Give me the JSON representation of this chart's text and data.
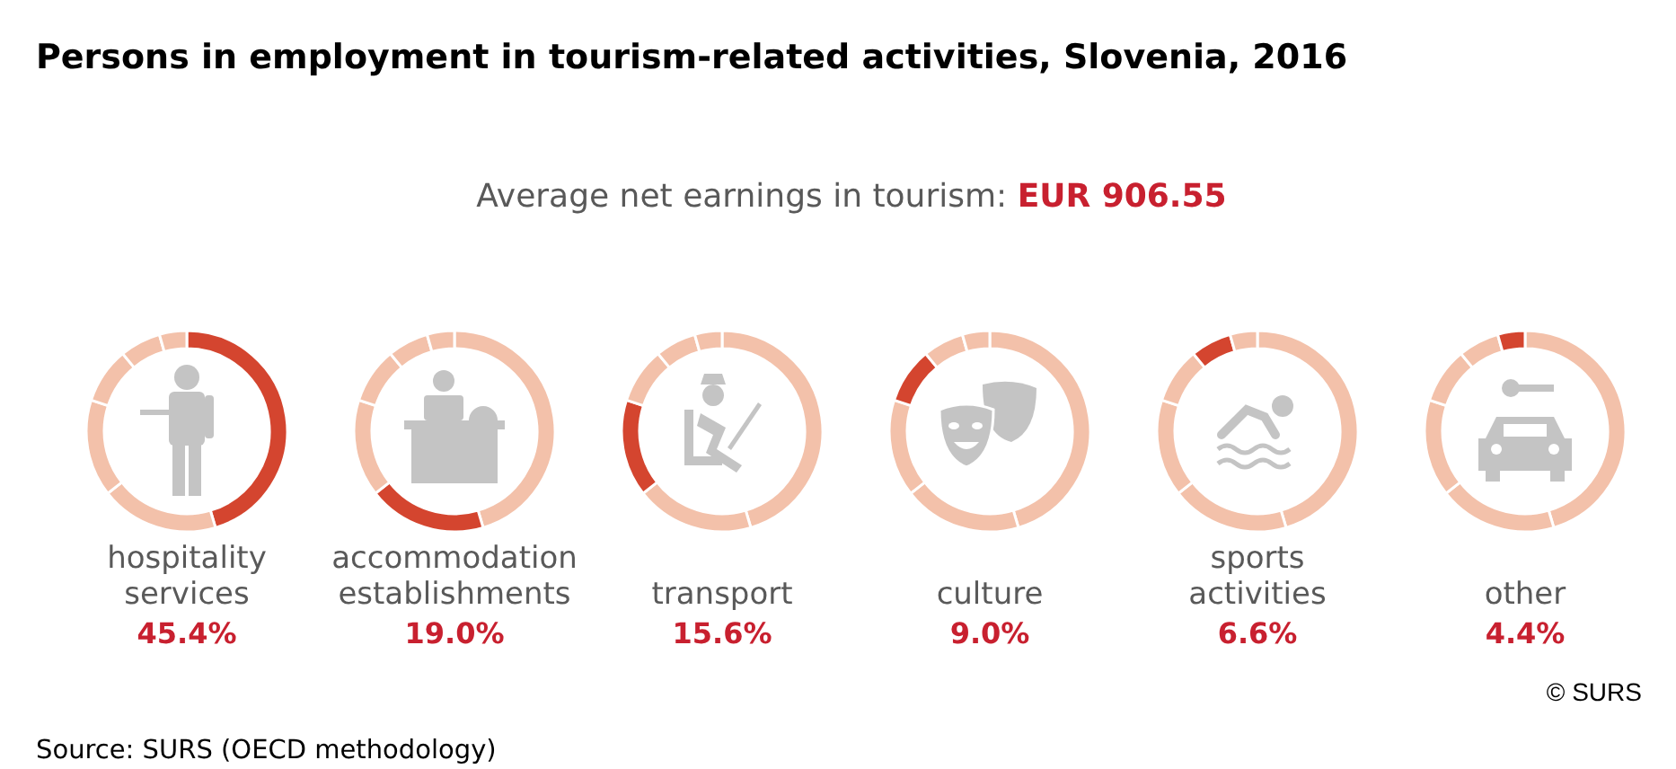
{
  "chart_data": [
    {
      "type": "other",
      "title": "Persons in employment in tourism-related activities, Slovenia, 2016",
      "subtitle": "Average net earnings in tourism: EUR 906.55",
      "annotations": [
        "© SURS",
        "Source: SURS (OECD methodology)"
      ]
    },
    {
      "type": "donut",
      "title": "hospitality services",
      "subtitle": "45.4%",
      "categories": [
        null,
        null,
        null,
        null,
        null,
        null
      ],
      "values": [
        45.4,
        19.0,
        15.6,
        9.0,
        6.6,
        4.4
      ],
      "colors": [
        "#d4452f",
        "#f3c1aa",
        "#f3c1aa",
        "#f3c1aa",
        "#f3c1aa",
        "#f3c1aa"
      ]
    },
    {
      "type": "donut",
      "title": "accommodation establishments",
      "subtitle": "19.0%",
      "categories": [
        null,
        null,
        null,
        null,
        null,
        null
      ],
      "values": [
        45.4,
        19.0,
        15.6,
        9.0,
        6.6,
        4.4
      ],
      "colors": [
        "#f3c1aa",
        "#d4452f",
        "#f3c1aa",
        "#f3c1aa",
        "#f3c1aa",
        "#f3c1aa"
      ]
    },
    {
      "type": "donut",
      "title": "transport",
      "subtitle": "15.6%",
      "categories": [
        null,
        null,
        null,
        null,
        null,
        null
      ],
      "values": [
        45.4,
        19.0,
        15.6,
        9.0,
        6.6,
        4.4
      ],
      "colors": [
        "#f3c1aa",
        "#f3c1aa",
        "#d4452f",
        "#f3c1aa",
        "#f3c1aa",
        "#f3c1aa"
      ]
    },
    {
      "type": "donut",
      "title": "culture",
      "subtitle": "9.0%",
      "categories": [
        null,
        null,
        null,
        null,
        null,
        null
      ],
      "values": [
        45.4,
        19.0,
        15.6,
        9.0,
        6.6,
        4.4
      ],
      "colors": [
        "#f3c1aa",
        "#f3c1aa",
        "#f3c1aa",
        "#d4452f",
        "#f3c1aa",
        "#f3c1aa"
      ]
    },
    {
      "type": "donut",
      "title": "sports activities",
      "subtitle": "6.6%",
      "categories": [
        null,
        null,
        null,
        null,
        null,
        null
      ],
      "values": [
        45.4,
        19.0,
        15.6,
        9.0,
        6.6,
        4.4
      ],
      "colors": [
        "#f3c1aa",
        "#f3c1aa",
        "#f3c1aa",
        "#f3c1aa",
        "#d4452f",
        "#f3c1aa"
      ]
    },
    {
      "type": "donut",
      "title": "other",
      "subtitle": "4.4%",
      "categories": [
        null,
        null,
        null,
        null,
        null,
        null
      ],
      "values": [
        45.4,
        19.0,
        15.6,
        9.0,
        6.6,
        4.4
      ],
      "colors": [
        "#f3c1aa",
        "#f3c1aa",
        "#f3c1aa",
        "#f3c1aa",
        "#f3c1aa",
        "#d4452f"
      ]
    }
  ]
}
